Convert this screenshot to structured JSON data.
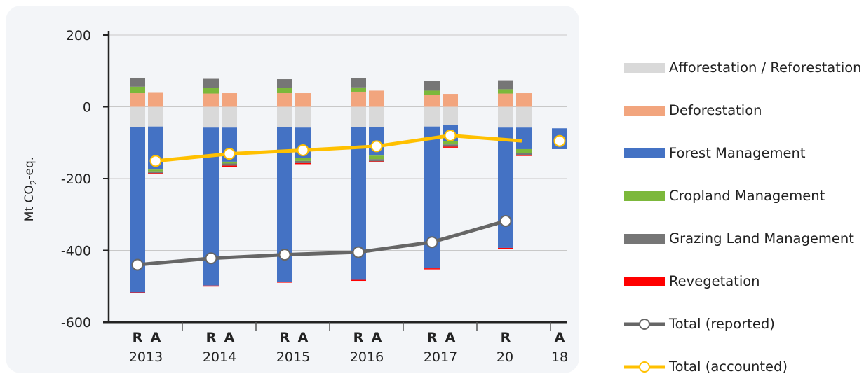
{
  "chart_data": {
    "type": "bar",
    "ylabel": "Mt CO2-eq.",
    "ylabel_main": "Mt CO",
    "ylabel_sub": "2",
    "ylabel_tail": "-eq.",
    "ylim": [
      -600,
      200
    ],
    "yticks": [
      200,
      0,
      -200,
      -400,
      -600
    ],
    "ytick_labels": [
      "200",
      "0",
      "-200",
      "-400",
      "-600"
    ],
    "grid": "horizontal",
    "legend_position": "right",
    "categories": [
      "2013",
      "2014",
      "2015",
      "2016",
      "2017",
      "2018"
    ],
    "group_labels": [
      "2013",
      "2014",
      "2015",
      "2016",
      "2017",
      "20",
      "18"
    ],
    "bar_sublabels": [
      "R",
      "A",
      "R",
      "A",
      "R",
      "A",
      "R",
      "A",
      "R",
      "A",
      "R",
      "A"
    ],
    "series": [
      {
        "name": "Afforestation / Reforestation",
        "color": "#d9d9d9",
        "reported": [
          -57,
          -58,
          -57,
          -57,
          -55,
          -58
        ],
        "accounted": [
          -55,
          -58,
          -58,
          -56,
          -50,
          -58
        ]
      },
      {
        "name": "Deforestation",
        "color": "#f2a57e",
        "reported": [
          38,
          37,
          38,
          42,
          33,
          37
        ],
        "accounted": [
          39,
          38,
          38,
          45,
          36,
          38
        ]
      },
      {
        "name": "Forest Management",
        "color": "#4472c4",
        "reported": [
          -460,
          -440,
          -430,
          -425,
          -395,
          -335
        ],
        "accounted": [
          -120,
          -95,
          -85,
          -80,
          -45,
          -60
        ]
      },
      {
        "name": "Cropland Management",
        "color": "#7cb83b",
        "reported": [
          18,
          16,
          14,
          12,
          12,
          12
        ],
        "accounted": [
          -5,
          -5,
          -8,
          -10,
          -10,
          -10
        ]
      },
      {
        "name": "Grazing Land Management",
        "color": "#767676",
        "reported": [
          25,
          25,
          25,
          25,
          28,
          25
        ],
        "accounted": [
          -5,
          -6,
          -6,
          -6,
          -6,
          -6
        ]
      },
      {
        "name": "Revegetation",
        "color": "#ff0000",
        "reported": [
          -2,
          -2,
          -2,
          -1,
          -2,
          -2
        ],
        "accounted": [
          -1,
          -1,
          -1,
          -1,
          -1,
          -1
        ]
      }
    ],
    "totals": [
      {
        "name": "Total (reported)",
        "color": "#666666",
        "values": [
          -440,
          -422,
          -412,
          -405,
          -377,
          -318
        ]
      },
      {
        "name": "Total (accounted)",
        "color": "#ffc000",
        "values": [
          -151,
          -131,
          -121,
          -110,
          -80,
          -95
        ]
      }
    ],
    "extra_point": {
      "label": "A",
      "total_accounted": -95,
      "forest_management": -60
    }
  }
}
